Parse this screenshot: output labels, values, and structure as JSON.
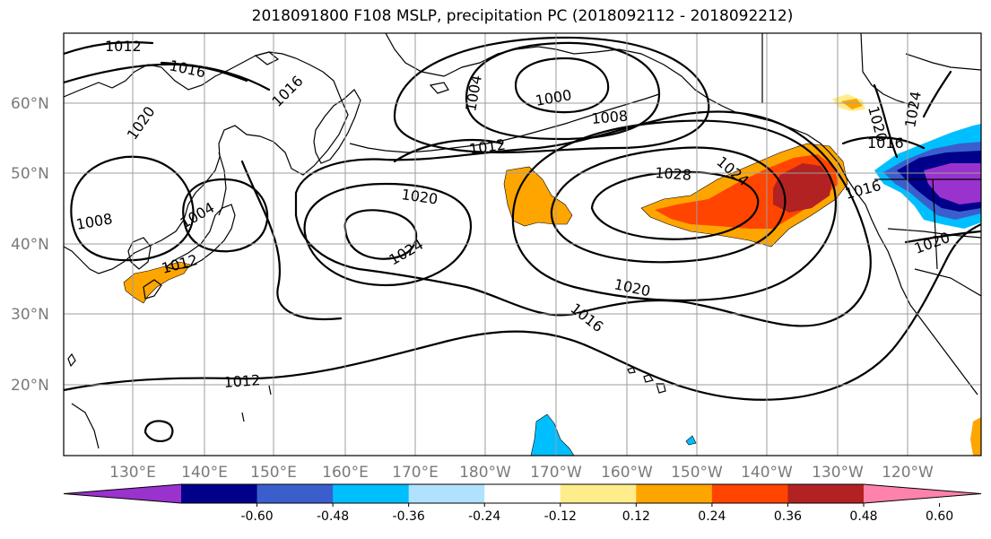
{
  "title": "2018091800 F108 MSLP, precipitation PC (2018092112 - 2018092212)",
  "latitude_labels": [
    "60°N",
    "50°N",
    "40°N",
    "30°N",
    "20°N"
  ],
  "longitude_labels": [
    "130°E",
    "140°E",
    "150°E",
    "160°E",
    "170°E",
    "180°W",
    "170°W",
    "160°W",
    "150°W",
    "140°W",
    "130°W",
    "120°W"
  ],
  "isobar_labels": [
    "1012",
    "1016",
    "1016",
    "1020",
    "1008",
    "1004",
    "1012",
    "1004",
    "1000",
    "1008",
    "1012",
    "1020",
    "1024",
    "1028",
    "1024",
    "1016",
    "1020",
    "1016",
    "1012",
    "1020",
    "1024",
    "1016"
  ],
  "colorbar": {
    "ticks": [
      "-0.60",
      "-0.48",
      "-0.36",
      "-0.24",
      "-0.12",
      "0.12",
      "0.24",
      "0.36",
      "0.48",
      "0.60"
    ],
    "colors": [
      "#9a32cd",
      "#00008b",
      "#3a5fcd",
      "#00bfff",
      "#b0e2ff",
      "#ffffff",
      "#ffec8b",
      "#ffa500",
      "#ff4500",
      "#b22222",
      "#ff82ab"
    ]
  }
}
